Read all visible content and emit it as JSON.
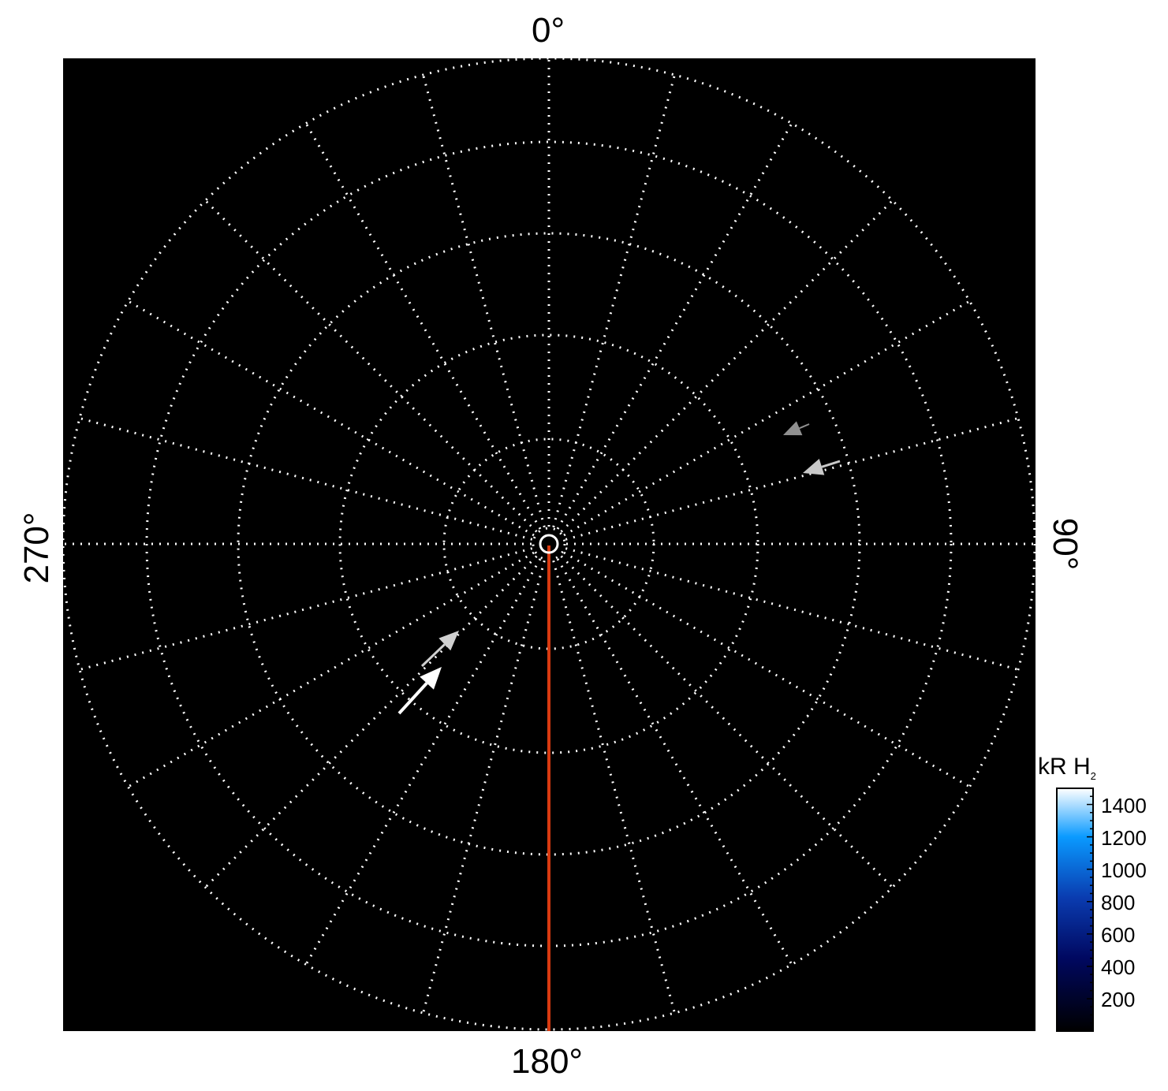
{
  "chart_data": {
    "type": "polar-map",
    "angle_labels": {
      "top": "0°",
      "right": "90°",
      "bottom": "180°",
      "left": "270°"
    },
    "meridian_step_deg": 15,
    "latitude_circles": 7,
    "background": "#000000",
    "grid": "dotted white",
    "highlight_meridian": {
      "angle_deg": 180,
      "color": "#d83a10"
    },
    "arrows": [
      {
        "color": "#ffffff",
        "direction": "north-east"
      },
      {
        "color": "#d0d0d0",
        "direction": "north-east"
      },
      {
        "color": "#c8c8c8",
        "direction": "west"
      },
      {
        "color": "#909090",
        "direction": "west"
      }
    ],
    "colorbar": {
      "title": "kR H",
      "title_sub": "2",
      "ticks": [
        "1400",
        "1200",
        "1000",
        "800",
        "600",
        "400",
        "200"
      ],
      "range": [
        0,
        1500
      ],
      "colors": [
        "#000000",
        "#000860",
        "#0a3cb0",
        "#0a9aff",
        "#ffffff"
      ]
    }
  }
}
